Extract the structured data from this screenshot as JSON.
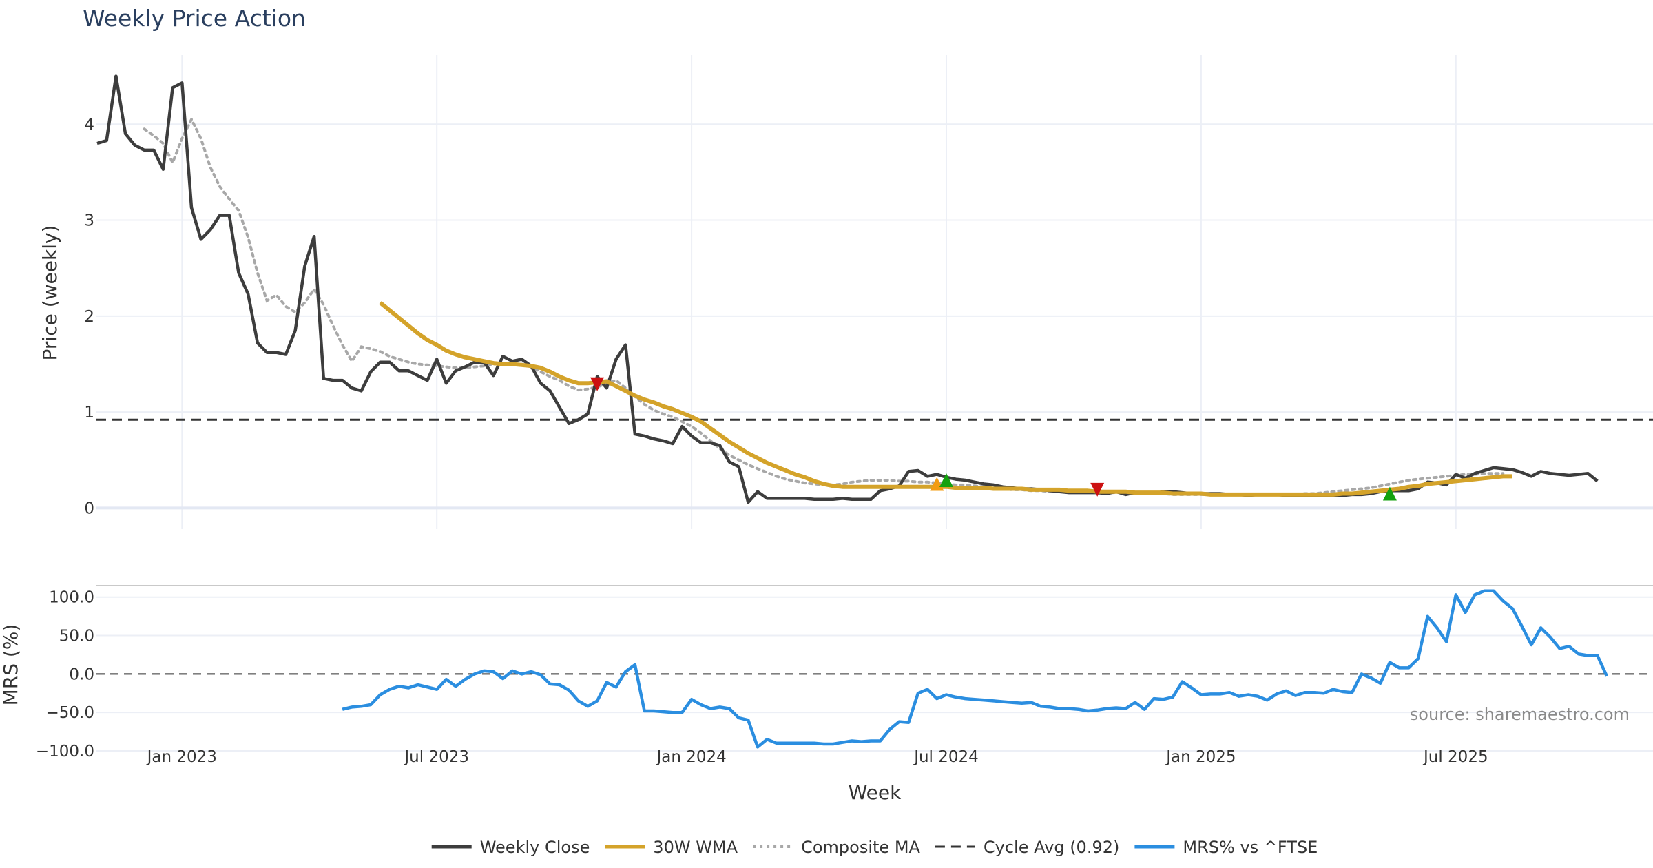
{
  "colors": {
    "close": "#3d3d3d",
    "wma": "#d4a32a",
    "composite": "#a8a8a8",
    "cycle": "#333333",
    "mrs": "#2b8ee0",
    "sell": "#cc1111",
    "buy_green": "#13a10e",
    "buy_orange": "#f39c12",
    "grid": "#eceff6",
    "background": "#ffffff"
  },
  "chart_data": {
    "type": "line",
    "title": "Weekly Price Action",
    "xlabel": "Week",
    "ylabel_price": "Price (weekly)",
    "ylabel_mrs": "MRS (%)",
    "x_ticks": [
      "Jan 2023",
      "Jul 2023",
      "Jan 2024",
      "Jul 2024",
      "Jan 2025",
      "Jul 2025"
    ],
    "x_tick_weeks": [
      9,
      36,
      63,
      90,
      117,
      144
    ],
    "price_ylim": [
      -0.22,
      4.72
    ],
    "price_yticks": [
      0,
      1,
      2,
      3,
      4
    ],
    "mrs_ylim": [
      -100,
      115
    ],
    "mrs_yticks": [
      100,
      50,
      0,
      -50,
      -100
    ],
    "mrs_ytick_labels": [
      "100.0",
      "50.0",
      "0.0",
      "−50.0",
      "−100.0"
    ],
    "cycle_avg": 0.92,
    "weekly_close": [
      3.8,
      3.83,
      4.5,
      3.9,
      3.78,
      3.73,
      3.73,
      3.53,
      4.38,
      4.43,
      3.13,
      2.8,
      2.9,
      3.05,
      3.05,
      2.45,
      2.23,
      1.72,
      1.62,
      1.62,
      1.6,
      1.85,
      2.52,
      2.83,
      1.35,
      1.33,
      1.33,
      1.25,
      1.22,
      1.42,
      1.52,
      1.52,
      1.43,
      1.43,
      1.38,
      1.33,
      1.55,
      1.3,
      1.43,
      1.47,
      1.52,
      1.52,
      1.38,
      1.58,
      1.53,
      1.55,
      1.48,
      1.3,
      1.22,
      1.05,
      0.88,
      0.92,
      0.98,
      1.37,
      1.25,
      1.55,
      1.7,
      0.77,
      0.75,
      0.72,
      0.7,
      0.67,
      0.85,
      0.75,
      0.68,
      0.68,
      0.65,
      0.48,
      0.43,
      0.06,
      0.17,
      0.1,
      0.1,
      0.1,
      0.1,
      0.1,
      0.09,
      0.09,
      0.09,
      0.1,
      0.09,
      0.09,
      0.09,
      0.18,
      0.2,
      0.23,
      0.38,
      0.39,
      0.33,
      0.35,
      0.32,
      0.3,
      0.29,
      0.27,
      0.25,
      0.24,
      0.22,
      0.21,
      0.2,
      0.2,
      0.19,
      0.18,
      0.17,
      0.16,
      0.16,
      0.16,
      0.16,
      0.15,
      0.17,
      0.14,
      0.16,
      0.15,
      0.15,
      0.17,
      0.17,
      0.16,
      0.15,
      0.15,
      0.15,
      0.15,
      0.14,
      0.14,
      0.13,
      0.14,
      0.14,
      0.14,
      0.13,
      0.13,
      0.13,
      0.13,
      0.13,
      0.13,
      0.13,
      0.14,
      0.14,
      0.15,
      0.17,
      0.18,
      0.18,
      0.18,
      0.2,
      0.27,
      0.26,
      0.24,
      0.35,
      0.31,
      0.36,
      0.39,
      0.42,
      0.41,
      0.4,
      0.37,
      0.33,
      0.38,
      0.36,
      0.35,
      0.34,
      0.35,
      0.36,
      0.28
    ],
    "wma_start_week": 30,
    "wma_30w": [
      2.14,
      2.06,
      1.98,
      1.9,
      1.82,
      1.75,
      1.7,
      1.64,
      1.6,
      1.57,
      1.55,
      1.53,
      1.51,
      1.5,
      1.5,
      1.49,
      1.48,
      1.46,
      1.42,
      1.37,
      1.33,
      1.3,
      1.3,
      1.31,
      1.32,
      1.27,
      1.22,
      1.17,
      1.13,
      1.1,
      1.06,
      1.03,
      0.99,
      0.95,
      0.9,
      0.83,
      0.76,
      0.69,
      0.63,
      0.57,
      0.52,
      0.47,
      0.43,
      0.39,
      0.35,
      0.32,
      0.28,
      0.25,
      0.23,
      0.22,
      0.22,
      0.22,
      0.22,
      0.22,
      0.22,
      0.22,
      0.22,
      0.22,
      0.22,
      0.22,
      0.22,
      0.21,
      0.21,
      0.21,
      0.21,
      0.2,
      0.2,
      0.2,
      0.2,
      0.19,
      0.19,
      0.19,
      0.19,
      0.18,
      0.18,
      0.18,
      0.17,
      0.17,
      0.17,
      0.17,
      0.16,
      0.16,
      0.16,
      0.16,
      0.15,
      0.15,
      0.15,
      0.15,
      0.14,
      0.14,
      0.14,
      0.14,
      0.14,
      0.14,
      0.14,
      0.14,
      0.14,
      0.14,
      0.14,
      0.14,
      0.14,
      0.14,
      0.15,
      0.15,
      0.16,
      0.17,
      0.18,
      0.19,
      0.2,
      0.22,
      0.23,
      0.25,
      0.26,
      0.27,
      0.28,
      0.29,
      0.3,
      0.31,
      0.32,
      0.33,
      0.33
    ],
    "composite_start_week": 5,
    "composite_ma": [
      3.95,
      3.88,
      3.8,
      3.6,
      3.85,
      4.05,
      3.85,
      3.55,
      3.35,
      3.22,
      3.1,
      2.82,
      2.45,
      2.16,
      2.22,
      2.1,
      2.04,
      2.14,
      2.28,
      2.12,
      1.9,
      1.7,
      1.53,
      1.68,
      1.66,
      1.63,
      1.58,
      1.55,
      1.52,
      1.5,
      1.49,
      1.48,
      1.47,
      1.46,
      1.46,
      1.47,
      1.48,
      1.5,
      1.5,
      1.5,
      1.5,
      1.47,
      1.42,
      1.37,
      1.33,
      1.27,
      1.23,
      1.24,
      1.26,
      1.3,
      1.33,
      1.25,
      1.16,
      1.08,
      1.02,
      0.98,
      0.95,
      0.9,
      0.85,
      0.78,
      0.7,
      0.62,
      0.55,
      0.5,
      0.45,
      0.41,
      0.37,
      0.33,
      0.3,
      0.28,
      0.26,
      0.25,
      0.24,
      0.24,
      0.25,
      0.27,
      0.28,
      0.29,
      0.29,
      0.29,
      0.28,
      0.28,
      0.27,
      0.27,
      0.26,
      0.25,
      0.24,
      0.24,
      0.23,
      0.22,
      0.21,
      0.2,
      0.19,
      0.19,
      0.18,
      0.18,
      0.17,
      0.17,
      0.17,
      0.17,
      0.17,
      0.16,
      0.16,
      0.16,
      0.16,
      0.15,
      0.15,
      0.15,
      0.15,
      0.14,
      0.14,
      0.14,
      0.14,
      0.14,
      0.14,
      0.14,
      0.14,
      0.14,
      0.14,
      0.14,
      0.14,
      0.14,
      0.14,
      0.15,
      0.15,
      0.16,
      0.17,
      0.18,
      0.19,
      0.2,
      0.21,
      0.23,
      0.25,
      0.27,
      0.29,
      0.3,
      0.31,
      0.32,
      0.33,
      0.34,
      0.35,
      0.35,
      0.36,
      0.36,
      0.36
    ],
    "mrs_start_week": 26,
    "mrs_pct": [
      -46,
      -43,
      -42,
      -40,
      -27,
      -20,
      -16,
      -18,
      -14,
      -17,
      -20,
      -7,
      -16,
      -7,
      0,
      4,
      3,
      -6,
      4,
      0,
      3,
      -1,
      -13,
      -14,
      -21,
      -35,
      -42,
      -35,
      -11,
      -17,
      3,
      12,
      -48,
      -48,
      -49,
      -50,
      -50,
      -33,
      -40,
      -45,
      -43,
      -45,
      -57,
      -60,
      -95,
      -85,
      -90,
      -90,
      -90,
      -90,
      -90,
      -91,
      -91,
      -89,
      -87,
      -88,
      -87,
      -87,
      -72,
      -62,
      -63,
      -25,
      -20,
      -32,
      -27,
      -30,
      -32,
      -33,
      -34,
      -35,
      -36,
      -37,
      -38,
      -37,
      -42,
      -43,
      -45,
      -45,
      -46,
      -48,
      -47,
      -45,
      -44,
      -45,
      -37,
      -46,
      -32,
      -33,
      -30,
      -10,
      -18,
      -27,
      -26,
      -26,
      -24,
      -29,
      -27,
      -29,
      -34,
      -26,
      -22,
      -28,
      -24,
      -24,
      -25,
      -20,
      -23,
      -24,
      0,
      -5,
      -12,
      15,
      8,
      8,
      20,
      75,
      60,
      42,
      103,
      80,
      103,
      108,
      108,
      95,
      85,
      62,
      38,
      60,
      48,
      33,
      36,
      26,
      24,
      24,
      -3
    ],
    "signals": [
      {
        "type": "sell",
        "week": 53,
        "price": 1.29
      },
      {
        "type": "buy_orange",
        "week": 89,
        "price": 0.25
      },
      {
        "type": "buy_green",
        "week": 90,
        "price": 0.29
      },
      {
        "type": "sell",
        "week": 106,
        "price": 0.19
      },
      {
        "type": "buy_green",
        "week": 137,
        "price": 0.15
      }
    ],
    "legend": [
      {
        "key": "close",
        "label": "Weekly Close",
        "style": "solid"
      },
      {
        "key": "wma",
        "label": "30W WMA",
        "style": "solid"
      },
      {
        "key": "composite",
        "label": "Composite MA",
        "style": "dot"
      },
      {
        "key": "cycle",
        "label": "Cycle Avg (0.92)",
        "style": "dash"
      },
      {
        "key": "mrs",
        "label": "MRS% vs ^FTSE",
        "style": "solid"
      }
    ],
    "legend_position": "bottom-center",
    "source_note": "source: sharemaestro.com"
  }
}
